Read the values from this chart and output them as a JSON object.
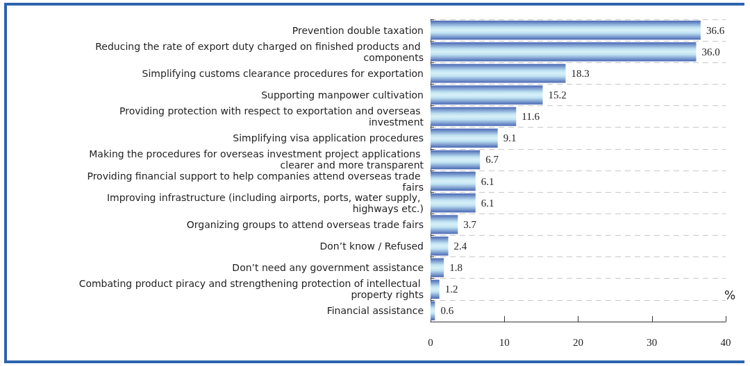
{
  "chart_data": {
    "type": "bar",
    "orientation": "horizontal",
    "xlabel": "%",
    "categories": [
      "Prevention double taxation",
      "Reducing the rate of export duty charged on finished products and components",
      "Simplifying customs clearance procedures for exportation",
      "Supporting manpower cultivation",
      "Providing protection with respect to exportation and overseas investment",
      "Simplifying visa application procedures",
      "Making the procedures for overseas investment project applications clearer and more transparent",
      "Providing financial support to help companies attend overseas trade fairs",
      "Improving infrastructure (including airports, ports, water supply, highways etc.)",
      "Organizing groups to attend overseas trade fairs",
      "Don’t know / Refused",
      "Don’t need any government assistance",
      "Combating product piracy and strengthening protection of intellectual property rights",
      "Financial assistance"
    ],
    "values": [
      36.6,
      36.0,
      18.3,
      15.2,
      11.6,
      9.1,
      6.7,
      6.1,
      6.1,
      3.7,
      2.4,
      1.8,
      1.2,
      0.6
    ],
    "value_labels": [
      "36.6",
      "36.0",
      "18.3",
      "15.2",
      "11.6",
      "9.1",
      "6.7",
      "6.1",
      "6.1",
      "3.7",
      "2.4",
      "1.8",
      "1.2",
      "0.6"
    ],
    "color": "#4a68b5",
    "xlim": [
      0,
      40
    ],
    "xticks": [
      0,
      10,
      20,
      30,
      40
    ],
    "grid": "y"
  }
}
